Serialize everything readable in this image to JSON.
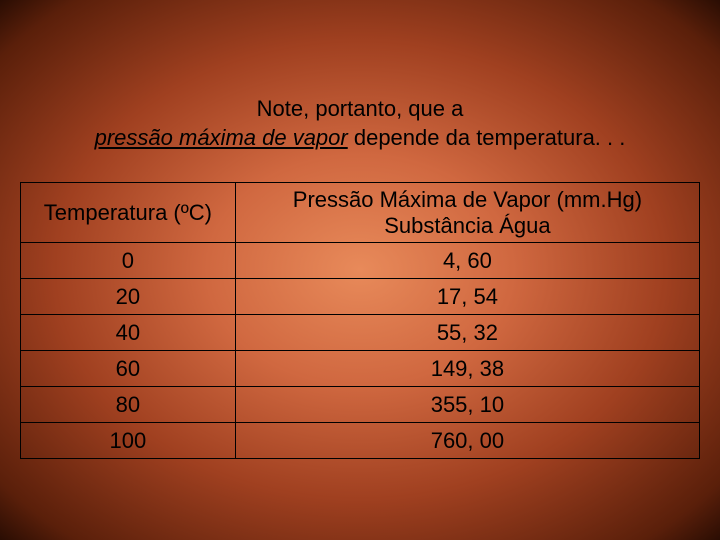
{
  "heading": {
    "line1": "Note, portanto, que a",
    "line2_italic": "pressão máxima de vapor",
    "line2_rest": " depende da temperatura. . ."
  },
  "table": {
    "col1_header": "Temperatura (ºC)",
    "col2_header_line1": "Pressão Máxima de Vapor (mm.Hg)",
    "col2_header_line2": "Substância Água",
    "rows": [
      {
        "temp": "0",
        "press": "4, 60"
      },
      {
        "temp": "20",
        "press": "17, 54"
      },
      {
        "temp": "40",
        "press": "55, 32"
      },
      {
        "temp": "60",
        "press": "149, 38"
      },
      {
        "temp": "80",
        "press": "355, 10"
      },
      {
        "temp": "100",
        "press": "760, 00"
      }
    ]
  }
}
